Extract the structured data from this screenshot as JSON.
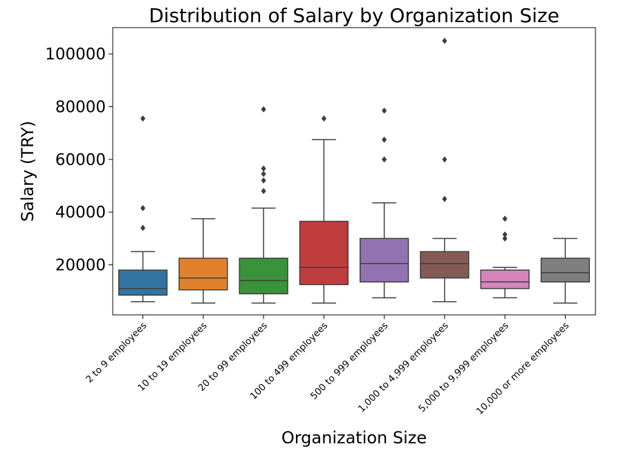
{
  "chart_data": {
    "type": "box",
    "title": "Distribution of Salary by Organization Size",
    "xlabel": "Organization Size",
    "ylabel": "Salary (TRY)",
    "ylim": [
      1000,
      110000
    ],
    "yticks": [
      20000,
      40000,
      60000,
      80000,
      100000
    ],
    "grid": false,
    "categories": [
      "2 to 9 employees",
      "10 to 19 employees",
      "20 to 99 employees",
      "100 to 499 employees",
      "500 to 999 employees",
      "1,000 to 4,999 employees",
      "5,000 to 9,999 employees",
      "10,000 or more employees"
    ],
    "colors": [
      "#3274a1",
      "#e1812c",
      "#3a923a",
      "#c03d3e",
      "#9372b2",
      "#845b53",
      "#d684bd",
      "#7f7f7f"
    ],
    "boxes": [
      {
        "whislo": 6000,
        "q1": 8500,
        "med": 11000,
        "q3": 18000,
        "whishi": 25000,
        "fliers": [
          34000,
          41500,
          75500
        ]
      },
      {
        "whislo": 5500,
        "q1": 10500,
        "med": 15000,
        "q3": 22500,
        "whishi": 37500,
        "fliers": []
      },
      {
        "whislo": 5500,
        "q1": 9000,
        "med": 14000,
        "q3": 22500,
        "whishi": 41500,
        "fliers": [
          48000,
          52000,
          54500,
          56500,
          79000
        ]
      },
      {
        "whislo": 5500,
        "q1": 12500,
        "med": 19000,
        "q3": 36500,
        "whishi": 67500,
        "fliers": [
          75500
        ]
      },
      {
        "whislo": 7500,
        "q1": 13500,
        "med": 20500,
        "q3": 30000,
        "whishi": 43500,
        "fliers": [
          60000,
          67500,
          78500
        ]
      },
      {
        "whislo": 6000,
        "q1": 15000,
        "med": 20500,
        "q3": 25000,
        "whishi": 30000,
        "fliers": [
          45000,
          60000,
          105000
        ]
      },
      {
        "whislo": 7500,
        "q1": 11000,
        "med": 13500,
        "q3": 18000,
        "whishi": 19000,
        "fliers": [
          30000,
          31500,
          37500
        ]
      },
      {
        "whislo": 5500,
        "q1": 13500,
        "med": 17000,
        "q3": 22500,
        "whishi": 30000,
        "fliers": []
      }
    ]
  }
}
